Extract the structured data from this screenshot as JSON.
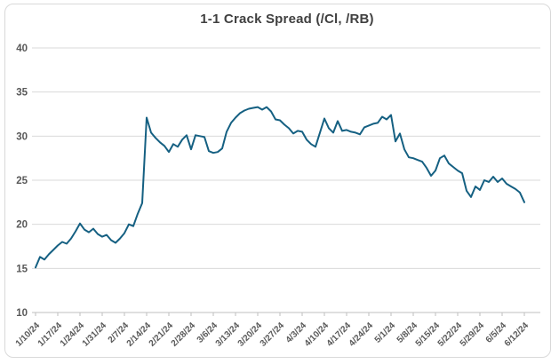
{
  "chart": {
    "title": "1-1 Crack Spread (/Cl, /RB)"
  },
  "chart_data": {
    "type": "line",
    "title": "1-1 Crack Spread (/Cl, /RB)",
    "x_labels": [
      "1/10/24",
      "1/17/24",
      "1/24/24",
      "1/31/24",
      "2/7/24",
      "2/14/24",
      "2/21/24",
      "2/28/24",
      "3/6/24",
      "3/13/24",
      "3/20/24",
      "3/27/24",
      "4/3/24",
      "4/10/24",
      "4/17/24",
      "4/24/24",
      "5/1/24",
      "5/8/24",
      "5/15/24",
      "5/22/24",
      "5/29/24",
      "6/5/24",
      "6/12/24"
    ],
    "label_every": 5,
    "values": [
      15.1,
      16.3,
      16.0,
      16.6,
      17.1,
      17.6,
      18.0,
      17.8,
      18.4,
      19.2,
      20.1,
      19.4,
      19.1,
      19.5,
      18.9,
      18.6,
      18.8,
      18.2,
      17.9,
      18.4,
      19.0,
      20.0,
      19.8,
      21.2,
      22.4,
      32.1,
      30.4,
      29.8,
      29.3,
      28.9,
      28.2,
      29.1,
      28.8,
      29.6,
      30.1,
      28.5,
      30.1,
      30.0,
      29.9,
      28.3,
      28.1,
      28.2,
      28.6,
      30.5,
      31.5,
      32.1,
      32.6,
      32.9,
      33.1,
      33.2,
      33.3,
      33.0,
      33.3,
      32.8,
      31.9,
      31.8,
      31.3,
      30.9,
      30.3,
      30.6,
      30.5,
      29.6,
      29.1,
      28.8,
      30.4,
      32.0,
      30.9,
      30.4,
      31.7,
      30.6,
      30.7,
      30.5,
      30.4,
      30.2,
      31.0,
      31.2,
      31.4,
      31.5,
      32.2,
      31.9,
      32.4,
      29.4,
      30.3,
      28.5,
      27.6,
      27.5,
      27.3,
      27.1,
      26.4,
      25.5,
      26.1,
      27.5,
      27.8,
      26.9,
      26.5,
      26.1,
      25.8,
      23.8,
      23.1,
      24.3,
      23.9,
      25.0,
      24.8,
      25.4,
      24.8,
      25.2,
      24.6,
      24.3,
      24.0,
      23.6,
      22.5
    ],
    "ylim": [
      10,
      40
    ],
    "yticks": [
      40,
      35,
      30,
      25,
      20,
      15,
      10
    ],
    "grid": true,
    "legend": "none",
    "line_color": "#156082",
    "gridline_color": "#d9d9d9",
    "axis_color": "#bfbfbf",
    "tick_label_color": "#595959",
    "title_color": "#404040"
  }
}
